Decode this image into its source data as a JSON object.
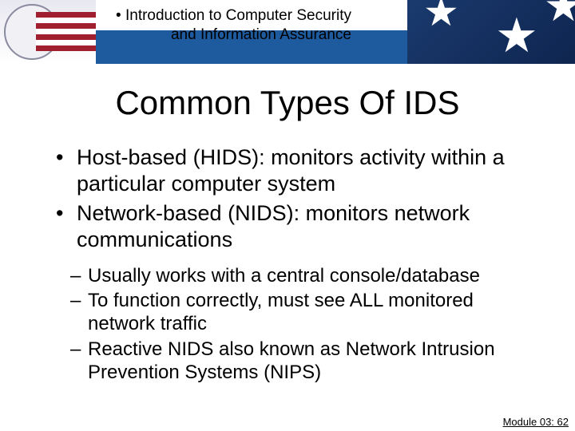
{
  "header": {
    "title_line1": "Introduction to Computer Security",
    "title_line2": "and Information Assurance",
    "band_color": "#1e5a9e",
    "flag_bg_color": "#1a3a6e"
  },
  "slide": {
    "title": "Common Types Of IDS",
    "title_fontsize": 42,
    "bullets": [
      "Host-based (HIDS): monitors activity within a particular computer system",
      "Network-based (NIDS): monitors network communications"
    ],
    "sub_bullets": [
      "Usually works with a central console/database",
      "To function correctly, must see ALL monitored network traffic",
      "Reactive NIDS also known as Network Intrusion Prevention Systems (NIPS)"
    ],
    "bullet_fontsize": 27,
    "sub_bullet_fontsize": 24,
    "text_color": "#000000"
  },
  "footer": {
    "text": "Module 03: 62"
  },
  "colors": {
    "background": "#ffffff",
    "stripe_red": "#a02030",
    "stripe_white": "#ffffff",
    "star_color": "#ffffff"
  }
}
